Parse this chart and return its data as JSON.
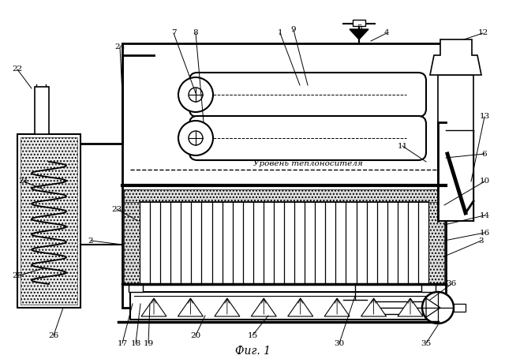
{
  "title": "Фиг. 1",
  "background": "#ffffff",
  "line_color": "#000000",
  "figsize": [
    6.4,
    4.55
  ],
  "dpi": 100
}
